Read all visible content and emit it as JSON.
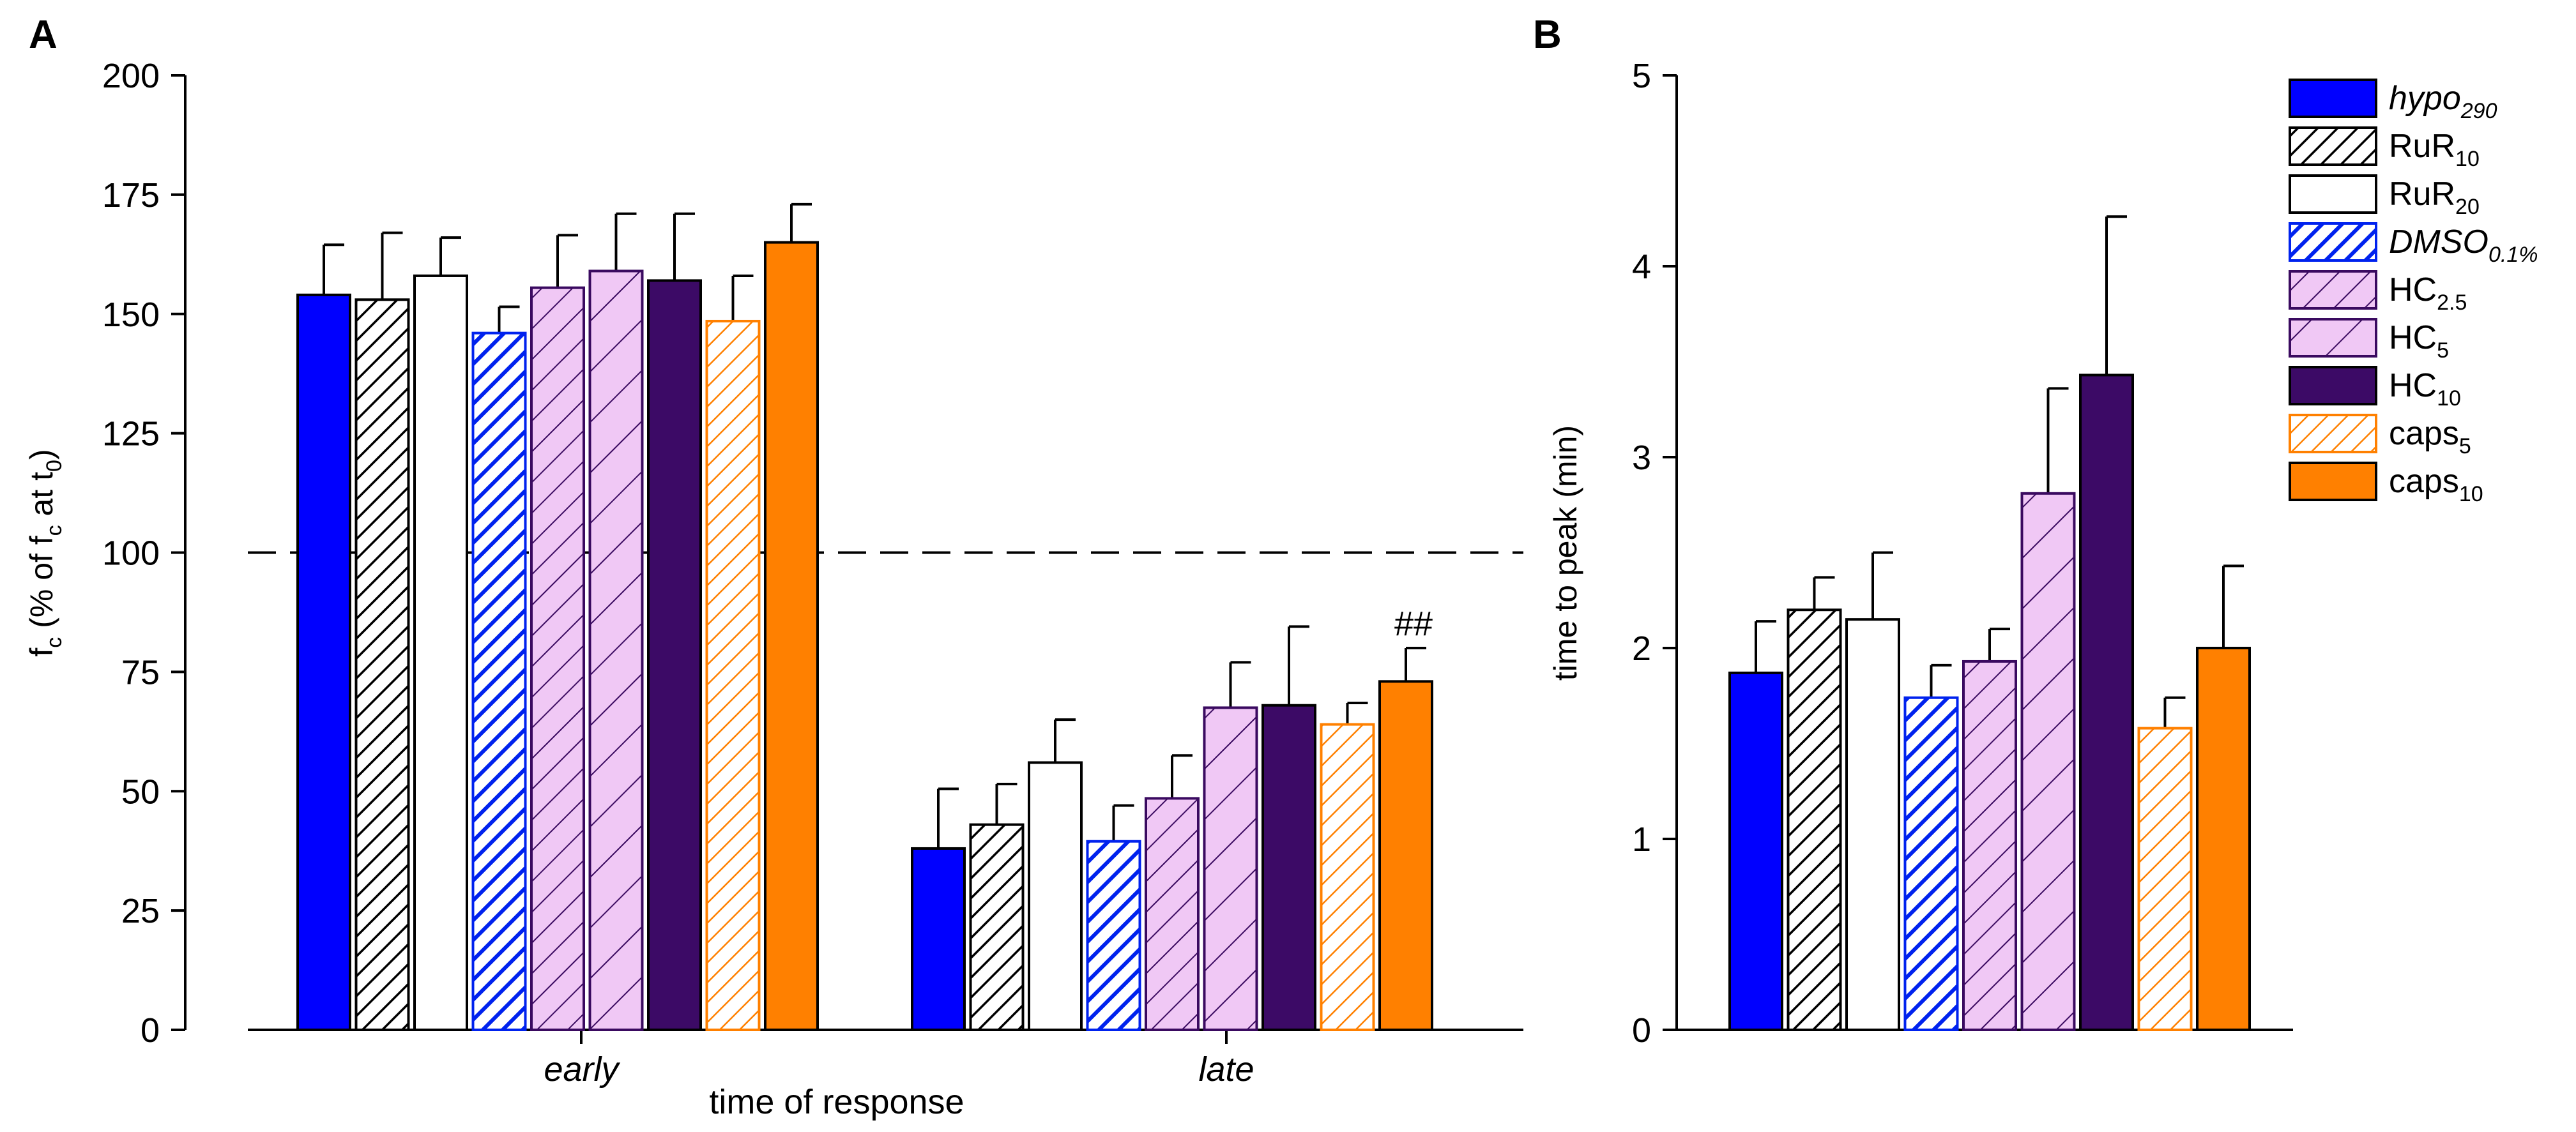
{
  "colors": {
    "hypo": "#0000ff",
    "rur_hatch": "#000000",
    "rur20": "#ffffff",
    "dmso": "#0022ee",
    "hc_light_fill": "#f0c8f5",
    "hc_stroke": "#3a0a60",
    "hc10": "#3c0a66",
    "caps": "#ff8000",
    "axis": "#000000"
  },
  "chart_data": [
    {
      "panel": "A",
      "type": "bar",
      "title": "",
      "xlabel": "time of response",
      "ylabel": "f_c (% of f_c at t_0)",
      "ylabel_parts": [
        "f",
        "c",
        " (% of f",
        "c",
        " at t",
        "0",
        ")"
      ],
      "ylim": [
        0,
        200
      ],
      "yticks": [
        0,
        25,
        50,
        75,
        100,
        125,
        150,
        175,
        200
      ],
      "reference_line": {
        "value": 100,
        "style": "dashed"
      },
      "categories": [
        "early",
        "late"
      ],
      "series": [
        {
          "name": "hypo290",
          "values": [
            154,
            38
          ],
          "errors": [
            10.5,
            12.5
          ]
        },
        {
          "name": "RuR10",
          "values": [
            153,
            43
          ],
          "errors": [
            14,
            8.5
          ]
        },
        {
          "name": "RuR20",
          "values": [
            158,
            56
          ],
          "errors": [
            8,
            9
          ]
        },
        {
          "name": "DMSO0.1%",
          "values": [
            146,
            39.5
          ],
          "errors": [
            5.5,
            7.5
          ]
        },
        {
          "name": "HC2.5",
          "values": [
            155.5,
            48.5
          ],
          "errors": [
            11,
            9
          ]
        },
        {
          "name": "HC5",
          "values": [
            159,
            67.5
          ],
          "errors": [
            12,
            9.5
          ]
        },
        {
          "name": "HC10",
          "values": [
            157,
            68
          ],
          "errors": [
            14,
            16.5
          ]
        },
        {
          "name": "caps5",
          "values": [
            148.5,
            64
          ],
          "errors": [
            9.5,
            4.5
          ]
        },
        {
          "name": "caps10",
          "values": [
            165,
            73
          ],
          "errors": [
            8,
            7
          ]
        }
      ],
      "annotations": [
        {
          "text": "##",
          "category": "late",
          "series": "caps10"
        }
      ]
    },
    {
      "panel": "B",
      "type": "bar",
      "title": "",
      "xlabel": "",
      "ylabel": "time to peak (min)",
      "ylim": [
        0,
        5
      ],
      "yticks": [
        0,
        1,
        2,
        3,
        4,
        5
      ],
      "categories": [
        ""
      ],
      "series": [
        {
          "name": "hypo290",
          "values": [
            1.87
          ],
          "errors": [
            0.27
          ]
        },
        {
          "name": "RuR10",
          "values": [
            2.2
          ],
          "errors": [
            0.17
          ]
        },
        {
          "name": "RuR20",
          "values": [
            2.15
          ],
          "errors": [
            0.35
          ]
        },
        {
          "name": "DMSO0.1%",
          "values": [
            1.74
          ],
          "errors": [
            0.17
          ]
        },
        {
          "name": "HC2.5",
          "values": [
            1.93
          ],
          "errors": [
            0.17
          ]
        },
        {
          "name": "HC5",
          "values": [
            2.81
          ],
          "errors": [
            0.55
          ]
        },
        {
          "name": "HC10",
          "values": [
            3.43
          ],
          "errors": [
            0.83
          ]
        },
        {
          "name": "caps5",
          "values": [
            1.58
          ],
          "errors": [
            0.16
          ]
        },
        {
          "name": "caps10",
          "values": [
            2.0
          ],
          "errors": [
            0.43
          ]
        }
      ]
    }
  ],
  "panels": {
    "a_label": "A",
    "b_label": "B"
  },
  "legend": {
    "placement": "right",
    "entries": [
      {
        "key": "hypo290",
        "base": "hypo",
        "sub": "290",
        "italic": true
      },
      {
        "key": "RuR10",
        "base": "RuR",
        "sub": "10",
        "italic": false
      },
      {
        "key": "RuR20",
        "base": "RuR",
        "sub": "20",
        "italic": false
      },
      {
        "key": "DMSO0.1%",
        "base": "DMSO",
        "sub": "0.1%",
        "italic": true
      },
      {
        "key": "HC2.5",
        "base": "HC",
        "sub": "2.5",
        "italic": false
      },
      {
        "key": "HC5",
        "base": "HC",
        "sub": "5",
        "italic": false
      },
      {
        "key": "HC10",
        "base": "HC",
        "sub": "10",
        "italic": false
      },
      {
        "key": "caps5",
        "base": "caps",
        "sub": "5",
        "italic": false
      },
      {
        "key": "caps10",
        "base": "caps",
        "sub": "10",
        "italic": false
      }
    ]
  }
}
